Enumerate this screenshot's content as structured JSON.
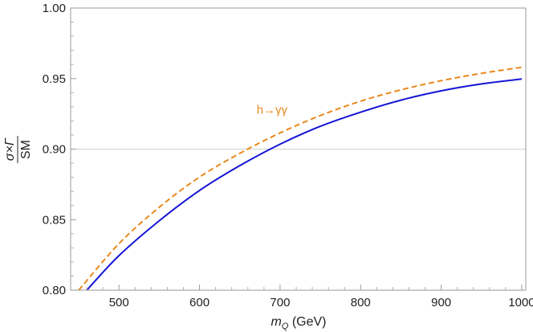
{
  "chart_data": {
    "type": "line",
    "title": "",
    "xlabel_main": "m",
    "xlabel_sub": "Q",
    "xlabel_unit": " (GeV)",
    "ylabel_top": "σ×Γ",
    "ylabel_bottom": "SM",
    "xlim": [
      440,
      1005
    ],
    "ylim": [
      0.8,
      1.0
    ],
    "xticks": [
      500,
      600,
      700,
      800,
      900,
      1000
    ],
    "xtick_labels": [
      "500",
      "600",
      "700",
      "800",
      "900",
      "1000"
    ],
    "yticks": [
      0.8,
      0.85,
      0.9,
      0.95,
      1.0
    ],
    "ytick_labels": [
      "0.80",
      "0.85",
      "0.90",
      "0.95",
      "1.00"
    ],
    "gridlines_y": [
      0.9
    ],
    "annotation": {
      "text": "h→γγ",
      "x": 690,
      "y": 0.928,
      "color": "#e8891c"
    },
    "series": [
      {
        "style": "solid",
        "color": "#1515d6",
        "x": [
          460,
          500,
          550,
          600,
          650,
          700,
          750,
          800,
          850,
          900,
          950,
          1000
        ],
        "y": [
          0.8,
          0.8245,
          0.8492,
          0.8707,
          0.8883,
          0.9035,
          0.9162,
          0.9262,
          0.9347,
          0.9413,
          0.9462,
          0.9497
        ]
      },
      {
        "style": "dashed",
        "color": "#e8891c",
        "x": [
          450,
          500,
          550,
          600,
          650,
          700,
          750,
          800,
          850,
          900,
          950,
          1000
        ],
        "y": [
          0.8,
          0.833,
          0.8588,
          0.8802,
          0.897,
          0.9115,
          0.9238,
          0.934,
          0.942,
          0.9485,
          0.9537,
          0.958
        ]
      }
    ]
  }
}
